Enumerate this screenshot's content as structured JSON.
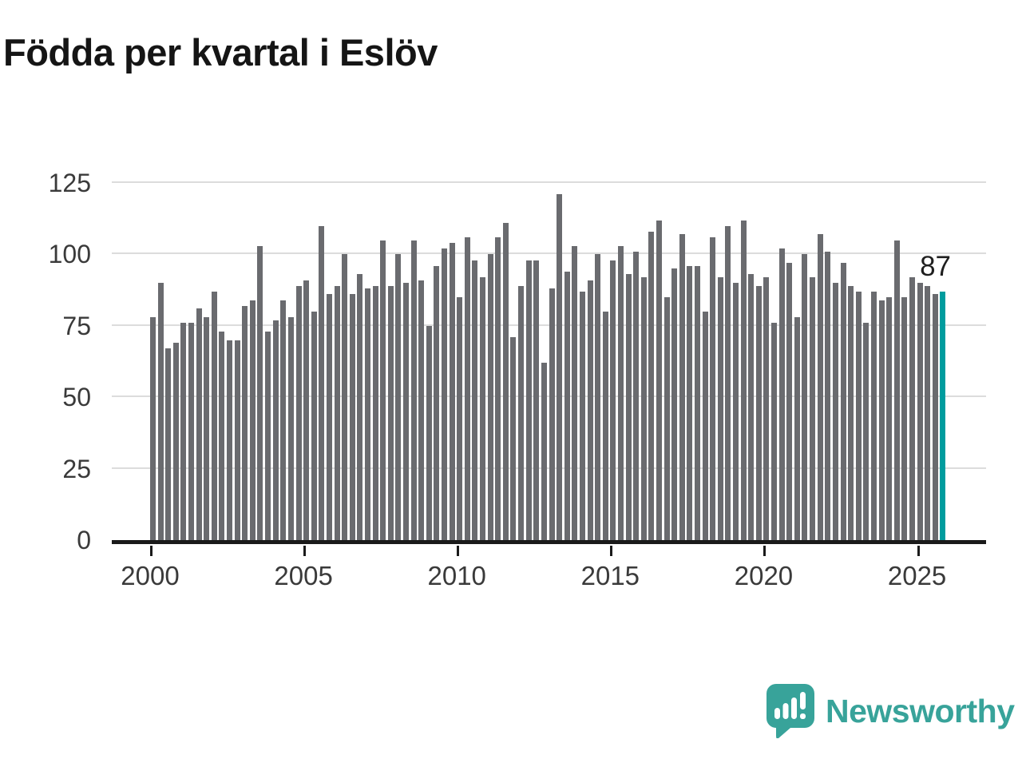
{
  "title": "Födda per kvartal i Eslöv",
  "chart_data": {
    "type": "bar",
    "title": "Födda per kvartal i Eslöv",
    "x_start": "2000 Q1",
    "x_end": "2025 Q4",
    "xlabel": "",
    "ylabel": "",
    "ylim": [
      0,
      125
    ],
    "grid": true,
    "yticks": [
      "0",
      "25",
      "50",
      "75",
      "100",
      "125"
    ],
    "xticks": [
      "2000",
      "2005",
      "2010",
      "2015",
      "2020",
      "2025"
    ],
    "bar_color": "#6a6b6f",
    "highlight_color": "#009c9e",
    "series": [
      {
        "name": "Födda",
        "values": [
          78,
          90,
          67,
          69,
          76,
          76,
          81,
          78,
          87,
          73,
          70,
          70,
          82,
          84,
          103,
          73,
          77,
          84,
          78,
          89,
          91,
          80,
          110,
          86,
          89,
          100,
          86,
          93,
          88,
          89,
          105,
          89,
          100,
          90,
          105,
          91,
          75,
          96,
          102,
          104,
          85,
          106,
          98,
          92,
          100,
          106,
          111,
          71,
          89,
          98,
          98,
          62,
          88,
          121,
          94,
          103,
          87,
          91,
          100,
          80,
          98,
          103,
          93,
          101,
          92,
          108,
          112,
          85,
          95,
          107,
          96,
          96,
          80,
          106,
          92,
          110,
          90,
          112,
          93,
          89,
          92,
          76,
          102,
          97,
          78,
          100,
          92,
          107,
          101,
          90,
          97,
          89,
          87,
          76,
          87,
          84,
          85,
          105,
          85,
          92,
          90,
          89,
          86,
          87
        ]
      }
    ],
    "highlight": {
      "index": 103,
      "value": 87,
      "label": "87"
    }
  },
  "branding": {
    "logo_text": "Newsworthy",
    "logo_color": "#38a39a",
    "logo_icon": "bar-chart-speech-bubble-icon"
  }
}
